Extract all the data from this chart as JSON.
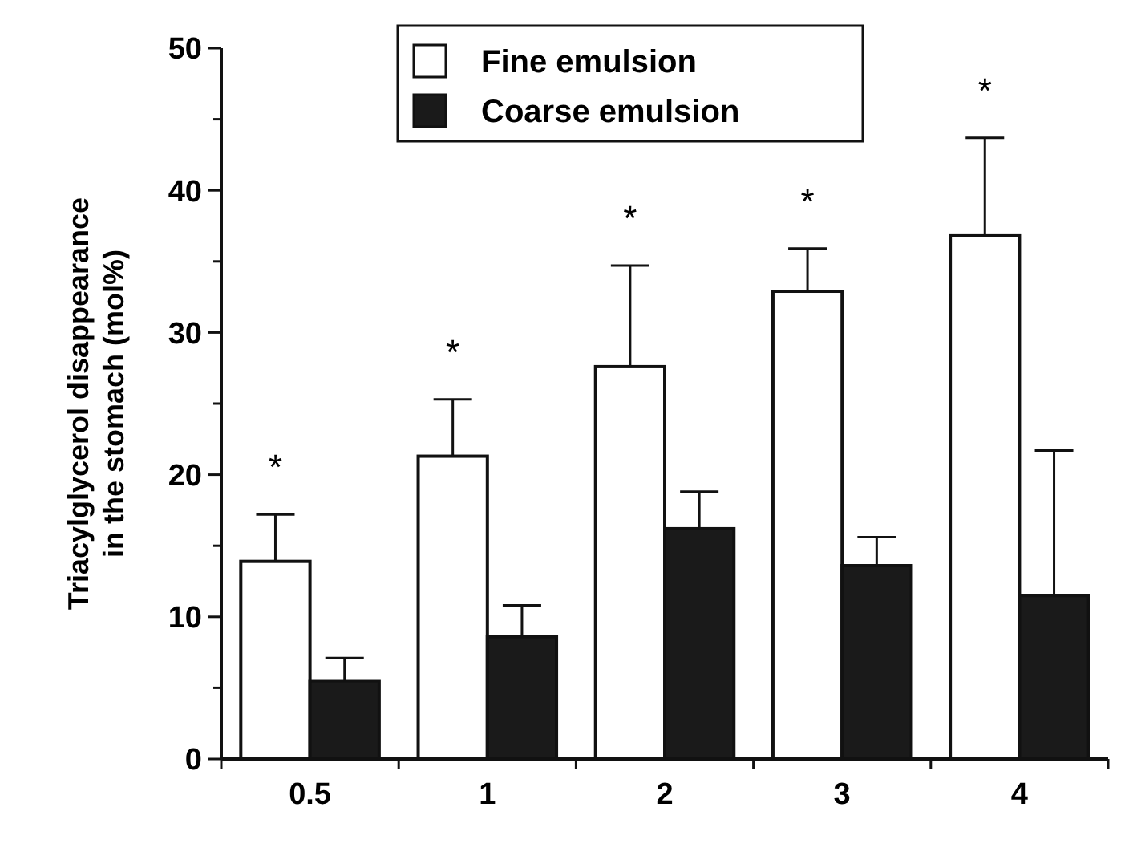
{
  "chart_data": {
    "type": "bar",
    "ylabel": "Triacylglycerol disappearance\nin the stomach (mol%)",
    "categories": [
      "0.5",
      "1",
      "2",
      "3",
      "4"
    ],
    "series": [
      {
        "name": "Fine emulsion",
        "color": "#ffffff",
        "values": [
          13.9,
          21.3,
          27.6,
          32.9,
          36.8
        ],
        "errors": [
          [
            13.9,
            17.2
          ],
          [
            21.3,
            25.3
          ],
          [
            27.6,
            34.7
          ],
          [
            32.9,
            35.9
          ],
          [
            36.8,
            43.7
          ]
        ]
      },
      {
        "name": "Coarse emulsion",
        "color": "#1a1a1a",
        "values": [
          5.5,
          8.6,
          16.2,
          13.6,
          11.5
        ],
        "errors": [
          [
            5.5,
            7.1
          ],
          [
            8.6,
            10.8
          ],
          [
            16.2,
            18.8
          ],
          [
            13.6,
            15.6
          ],
          [
            11.5,
            21.7
          ]
        ]
      }
    ],
    "ylim": [
      0,
      50
    ],
    "yticks": [
      0,
      {
        "value": 5,
        "label": null
      },
      10,
      {
        "value": 15,
        "label": null
      },
      20,
      {
        "value": 25,
        "label": null
      },
      30,
      {
        "value": 35,
        "label": null
      },
      40,
      {
        "value": 45,
        "label": null
      },
      50
    ],
    "annotations": [
      "*",
      "*",
      "*",
      "*",
      "*"
    ],
    "legend": "top",
    "grid": false
  }
}
